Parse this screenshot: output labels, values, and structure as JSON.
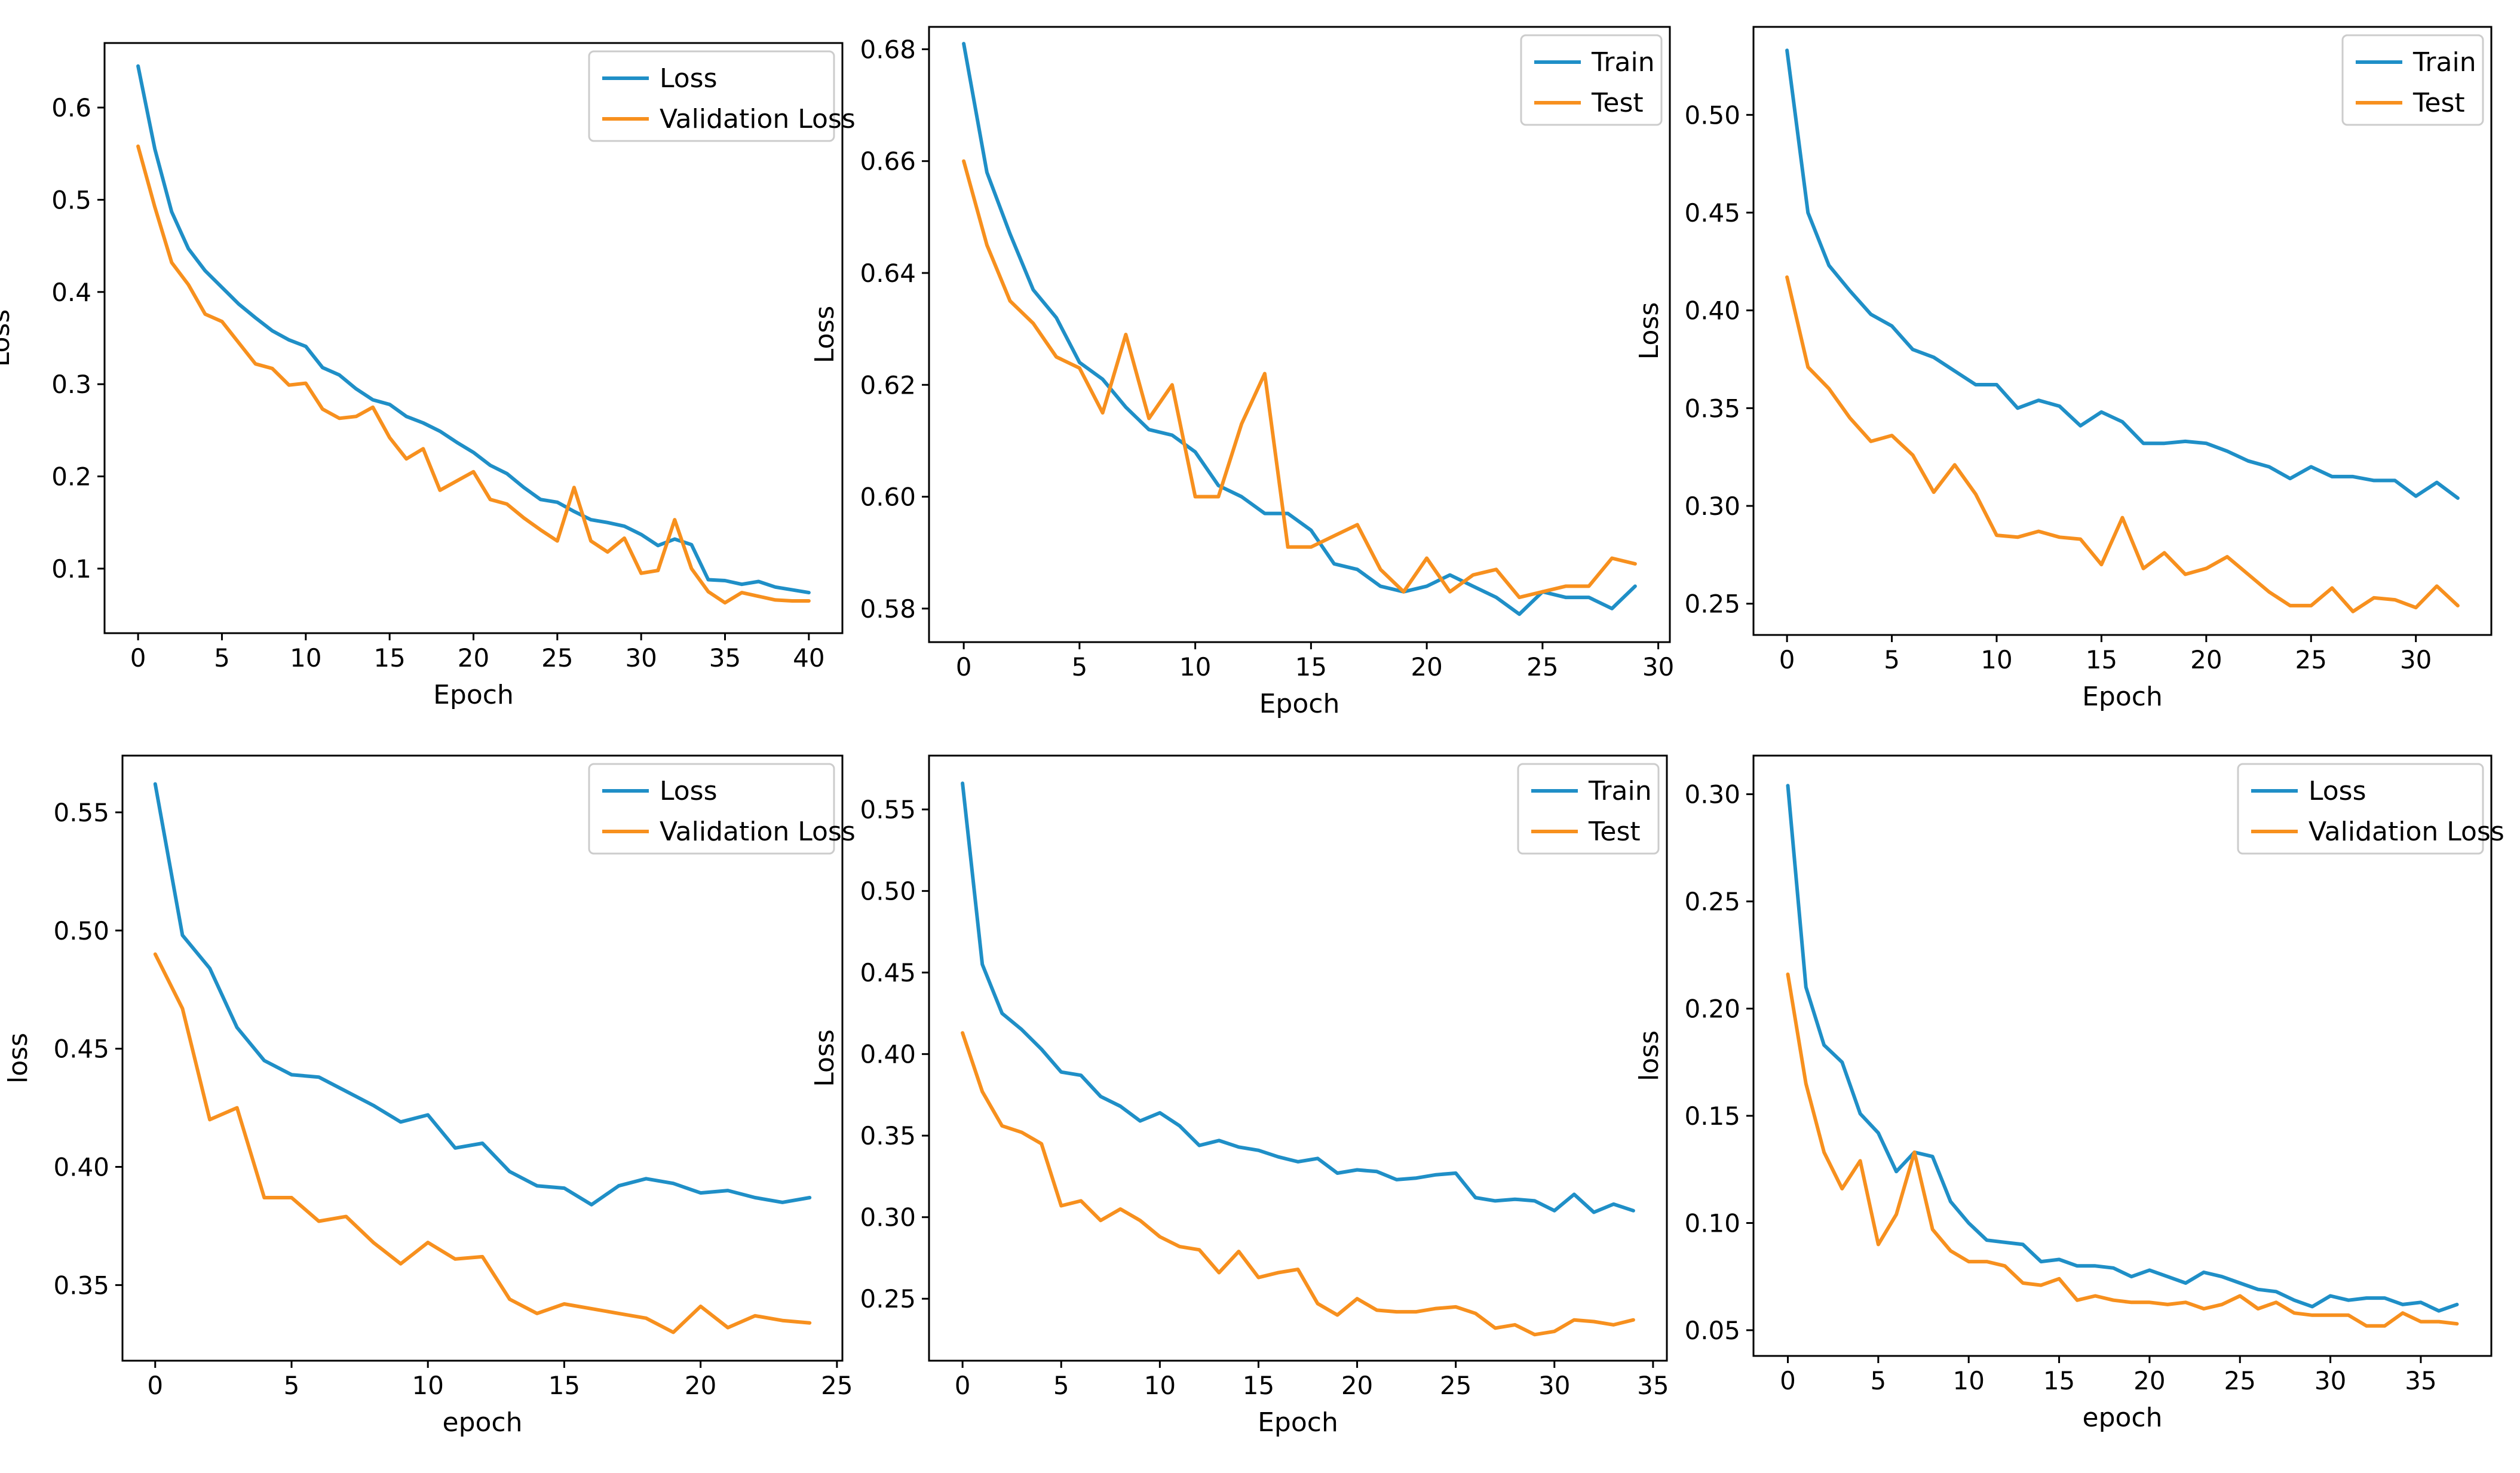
{
  "chart_data": [
    {
      "type": "line",
      "title": "",
      "xlabel": "Epoch",
      "ylabel": "Loss",
      "xlim": [
        -2,
        42
      ],
      "ylim": [
        0.03,
        0.67
      ],
      "xticks": [
        0,
        5,
        10,
        15,
        20,
        25,
        30,
        35,
        40
      ],
      "yticks": [
        0.1,
        0.2,
        0.3,
        0.4,
        0.5,
        0.6
      ],
      "ytick_labels": [
        "0.1",
        "0.2",
        "0.3",
        "0.4",
        "0.5",
        "0.6"
      ],
      "legend_position": "top-right",
      "series": [
        {
          "name": "Loss",
          "color": "#1f8fc7",
          "values": [
            0.645,
            0.555,
            0.487,
            0.447,
            0.423,
            0.405,
            0.387,
            0.372,
            0.358,
            0.348,
            0.341,
            0.318,
            0.31,
            0.295,
            0.283,
            0.278,
            0.265,
            0.258,
            0.249,
            0.237,
            0.226,
            0.212,
            0.203,
            0.188,
            0.175,
            0.172,
            0.162,
            0.153,
            0.15,
            0.146,
            0.137,
            0.125,
            0.132,
            0.126,
            0.088,
            0.087,
            0.083,
            0.086,
            0.08,
            0.077,
            0.074
          ]
        },
        {
          "name": "Validation Loss",
          "color": "#f7901e",
          "values": [
            0.558,
            0.492,
            0.432,
            0.408,
            0.376,
            0.368,
            0.345,
            0.322,
            0.317,
            0.299,
            0.301,
            0.273,
            0.263,
            0.265,
            0.275,
            0.242,
            0.219,
            0.23,
            0.185,
            0.195,
            0.205,
            0.175,
            0.17,
            0.155,
            0.142,
            0.13,
            0.188,
            0.13,
            0.118,
            0.133,
            0.095,
            0.098,
            0.153,
            0.1,
            0.075,
            0.063,
            0.074,
            0.07,
            0.066,
            0.065,
            0.065
          ]
        }
      ]
    },
    {
      "type": "line",
      "title": "",
      "xlabel": "Epoch",
      "ylabel": "Loss",
      "xlim": [
        -1.5,
        30.5
      ],
      "ylim": [
        0.574,
        0.684
      ],
      "xticks": [
        0,
        5,
        10,
        15,
        20,
        25,
        30
      ],
      "yticks": [
        0.58,
        0.6,
        0.62,
        0.64,
        0.66,
        0.68
      ],
      "ytick_labels": [
        "0.58",
        "0.60",
        "0.62",
        "0.64",
        "0.66",
        "0.68"
      ],
      "legend_position": "top-right",
      "series": [
        {
          "name": "Train",
          "color": "#1f8fc7",
          "values": [
            0.681,
            0.658,
            0.647,
            0.637,
            0.632,
            0.624,
            0.621,
            0.616,
            0.612,
            0.611,
            0.608,
            0.602,
            0.6,
            0.597,
            0.597,
            0.594,
            0.588,
            0.587,
            0.584,
            0.583,
            0.584,
            0.586,
            0.584,
            0.582,
            0.579,
            0.583,
            0.582,
            0.582,
            0.58,
            0.584
          ]
        },
        {
          "name": "Test",
          "color": "#f7901e",
          "values": [
            0.66,
            0.645,
            0.635,
            0.631,
            0.625,
            0.623,
            0.615,
            0.629,
            0.614,
            0.62,
            0.6,
            0.6,
            0.613,
            0.622,
            0.591,
            0.591,
            0.593,
            0.595,
            0.587,
            0.583,
            0.589,
            0.583,
            0.586,
            0.587,
            0.582,
            0.583,
            0.584,
            0.584,
            0.589,
            0.588
          ]
        }
      ]
    },
    {
      "type": "line",
      "title": "",
      "xlabel": "Epoch",
      "ylabel": "Loss",
      "xlim": [
        -1.6,
        33.6
      ],
      "ylim": [
        0.234,
        0.545
      ],
      "xticks": [
        0,
        5,
        10,
        15,
        20,
        25,
        30
      ],
      "yticks": [
        0.25,
        0.3,
        0.35,
        0.4,
        0.45,
        0.5
      ],
      "ytick_labels": [
        "0.25",
        "0.30",
        "0.35",
        "0.40",
        "0.45",
        "0.50"
      ],
      "legend_position": "top-right",
      "series": [
        {
          "name": "Train",
          "color": "#1f8fc7",
          "values": [
            0.533,
            0.45,
            0.423,
            0.41,
            0.398,
            0.392,
            0.38,
            0.376,
            0.369,
            0.362,
            0.362,
            0.35,
            0.354,
            0.351,
            0.341,
            0.348,
            0.343,
            0.332,
            0.332,
            0.333,
            0.332,
            0.328,
            0.323,
            0.32,
            0.314,
            0.32,
            0.315,
            0.315,
            0.313,
            0.313,
            0.305,
            0.312,
            0.304
          ]
        },
        {
          "name": "Test",
          "color": "#f7901e",
          "values": [
            0.417,
            0.371,
            0.36,
            0.345,
            0.333,
            0.336,
            0.326,
            0.307,
            0.321,
            0.306,
            0.285,
            0.284,
            0.287,
            0.284,
            0.283,
            0.27,
            0.294,
            0.268,
            0.276,
            0.265,
            0.268,
            0.274,
            0.265,
            0.256,
            0.249,
            0.249,
            0.258,
            0.246,
            0.253,
            0.252,
            0.248,
            0.259,
            0.249
          ]
        }
      ]
    },
    {
      "type": "line",
      "title": "",
      "xlabel": "epoch",
      "ylabel": "loss",
      "xlim": [
        -1.2,
        25.2
      ],
      "ylim": [
        0.318,
        0.574
      ],
      "xticks": [
        0,
        5,
        10,
        15,
        20,
        25
      ],
      "yticks": [
        0.35,
        0.4,
        0.45,
        0.5,
        0.55
      ],
      "ytick_labels": [
        "0.35",
        "0.40",
        "0.45",
        "0.50",
        "0.55"
      ],
      "legend_position": "top-right",
      "series": [
        {
          "name": "Loss",
          "color": "#1f8fc7",
          "values": [
            0.562,
            0.498,
            0.484,
            0.459,
            0.445,
            0.439,
            0.438,
            0.432,
            0.426,
            0.419,
            0.422,
            0.408,
            0.41,
            0.398,
            0.392,
            0.391,
            0.384,
            0.392,
            0.395,
            0.393,
            0.389,
            0.39,
            0.387,
            0.385,
            0.387
          ]
        },
        {
          "name": "Validation Loss",
          "color": "#f7901e",
          "values": [
            0.49,
            0.467,
            0.42,
            0.425,
            0.387,
            0.387,
            0.377,
            0.379,
            0.368,
            0.359,
            0.368,
            0.361,
            0.362,
            0.344,
            0.338,
            0.342,
            0.34,
            0.338,
            0.336,
            0.33,
            0.341,
            0.332,
            0.337,
            0.335,
            0.334
          ]
        }
      ]
    },
    {
      "type": "line",
      "title": "",
      "xlabel": "Epoch",
      "ylabel": "Loss",
      "xlim": [
        -1.7,
        35.7
      ],
      "ylim": [
        0.212,
        0.583
      ],
      "xticks": [
        0,
        5,
        10,
        15,
        20,
        25,
        30,
        35
      ],
      "yticks": [
        0.25,
        0.3,
        0.35,
        0.4,
        0.45,
        0.5,
        0.55
      ],
      "ytick_labels": [
        "0.25",
        "0.30",
        "0.35",
        "0.40",
        "0.45",
        "0.50",
        "0.55"
      ],
      "legend_position": "top-right",
      "series": [
        {
          "name": "Train",
          "color": "#1f8fc7",
          "values": [
            0.566,
            0.455,
            0.425,
            0.415,
            0.403,
            0.389,
            0.387,
            0.374,
            0.368,
            0.359,
            0.364,
            0.356,
            0.344,
            0.347,
            0.343,
            0.341,
            0.337,
            0.334,
            0.336,
            0.327,
            0.329,
            0.328,
            0.323,
            0.324,
            0.326,
            0.327,
            0.312,
            0.31,
            0.311,
            0.31,
            0.304,
            0.314,
            0.303,
            0.308,
            0.304
          ]
        },
        {
          "name": "Test",
          "color": "#f7901e",
          "values": [
            0.413,
            0.377,
            0.356,
            0.352,
            0.345,
            0.307,
            0.31,
            0.298,
            0.305,
            0.298,
            0.288,
            0.282,
            0.28,
            0.266,
            0.279,
            0.263,
            0.266,
            0.268,
            0.247,
            0.24,
            0.25,
            0.243,
            0.242,
            0.242,
            0.244,
            0.245,
            0.241,
            0.232,
            0.234,
            0.228,
            0.23,
            0.237,
            0.236,
            0.234,
            0.237
          ]
        }
      ]
    },
    {
      "type": "line",
      "title": "",
      "xlabel": "epoch",
      "ylabel": "loss",
      "xlim": [
        -1.9,
        38.9
      ],
      "ylim": [
        0.038,
        0.318
      ],
      "xticks": [
        0,
        5,
        10,
        15,
        20,
        25,
        30,
        35
      ],
      "yticks": [
        0.05,
        0.1,
        0.15,
        0.2,
        0.25,
        0.3
      ],
      "ytick_labels": [
        "0.05",
        "0.10",
        "0.15",
        "0.20",
        "0.25",
        "0.30"
      ],
      "legend_position": "top-right",
      "series": [
        {
          "name": "Loss",
          "color": "#1f8fc7",
          "values": [
            0.304,
            0.21,
            0.183,
            0.175,
            0.151,
            0.142,
            0.124,
            0.133,
            0.131,
            0.11,
            0.1,
            0.092,
            0.091,
            0.09,
            0.082,
            0.083,
            0.08,
            0.08,
            0.079,
            0.075,
            0.078,
            0.075,
            0.072,
            0.077,
            0.075,
            0.072,
            0.069,
            0.068,
            0.064,
            0.061,
            0.066,
            0.064,
            0.065,
            0.065,
            0.062,
            0.063,
            0.059,
            0.062
          ]
        },
        {
          "name": "Validation Loss",
          "color": "#f7901e",
          "values": [
            0.216,
            0.165,
            0.133,
            0.116,
            0.129,
            0.09,
            0.104,
            0.133,
            0.097,
            0.087,
            0.082,
            0.082,
            0.08,
            0.072,
            0.071,
            0.074,
            0.064,
            0.066,
            0.064,
            0.063,
            0.063,
            0.062,
            0.063,
            0.06,
            0.062,
            0.066,
            0.06,
            0.063,
            0.058,
            0.057,
            0.057,
            0.057,
            0.052,
            0.052,
            0.058,
            0.054,
            0.054,
            0.053
          ]
        }
      ]
    }
  ]
}
